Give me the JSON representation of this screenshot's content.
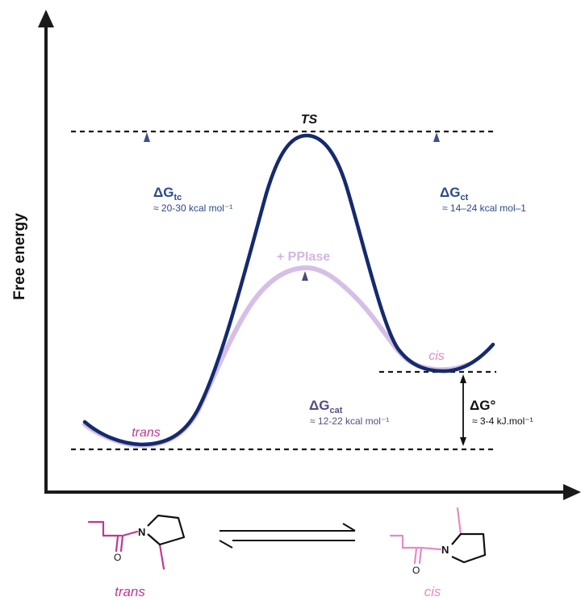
{
  "axis": {
    "ylabel": "Free energy"
  },
  "labels": {
    "ts": "TS",
    "ppiase": "+ PPIase",
    "trans_curve": "trans",
    "cis_curve": "cis"
  },
  "energies": {
    "tc": {
      "symbol": "ΔG",
      "sub": "tc",
      "value": "≈ 20-30 kcal mol⁻¹"
    },
    "ct": {
      "symbol": "ΔG",
      "sub": "ct",
      "value": "≈ 14–24 kcal mol–1"
    },
    "cat": {
      "symbol": "ΔG",
      "sub": "cat",
      "value": "≈ 12-22 kcal mol⁻¹"
    },
    "std": {
      "symbol": "ΔG°",
      "value": "≈ 3-4 kJ.mol⁻¹"
    }
  },
  "molecules": {
    "trans_label": "trans",
    "cis_label": "cis",
    "carbonyl_O": "O",
    "amide_N": "N"
  },
  "colors": {
    "uncatalyzed": "#152a6e",
    "catalyzed": "#d6bfe6",
    "trans_pink": "#c0388f",
    "cis_pink": "#e58ac7",
    "arrow_blue": "#3c4f8e",
    "text_blue": "#2b4a8e",
    "text_purple": "#5a4a82"
  }
}
